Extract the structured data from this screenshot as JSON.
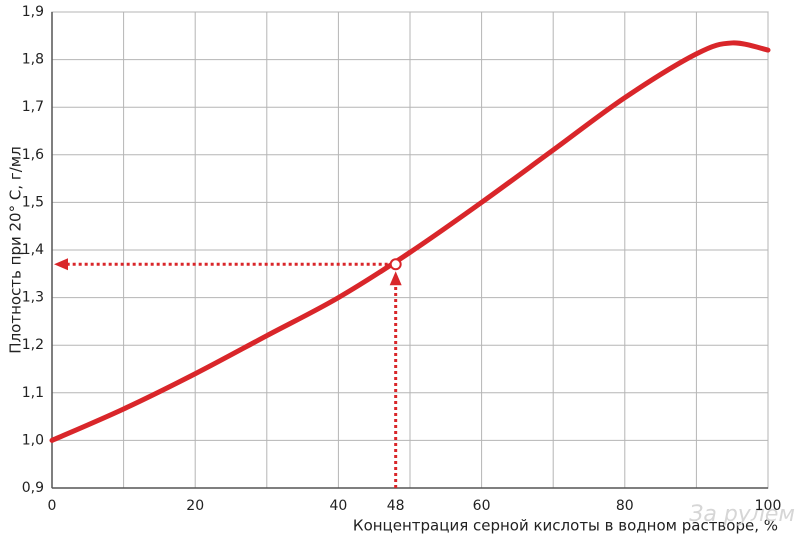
{
  "chart_data": {
    "type": "line",
    "ylabel": "Плотность при 20° C, г/мл",
    "xlabel": "Концентрация серной кислоты в водном растворе, %",
    "watermark": "За рулем",
    "x": [
      0,
      10,
      20,
      30,
      40,
      50,
      60,
      70,
      80,
      90,
      95,
      100
    ],
    "series": [
      {
        "color": "#d9262a",
        "values": [
          1.0,
          1.066,
          1.14,
          1.22,
          1.3,
          1.395,
          1.5,
          1.61,
          1.72,
          1.812,
          1.835,
          1.82
        ]
      }
    ],
    "xlim": [
      0,
      100
    ],
    "xticks": [
      0,
      20,
      40,
      60,
      80,
      100
    ],
    "xminor": [
      10,
      30,
      50,
      70,
      90
    ],
    "ylim": [
      0.9,
      1.9
    ],
    "yticks": [
      {
        "value": 0.9,
        "label": "0,9"
      },
      {
        "value": 1.0,
        "label": "1,0"
      },
      {
        "value": 1.1,
        "label": "1,1"
      },
      {
        "value": 1.2,
        "label": "1,2"
      },
      {
        "value": 1.3,
        "label": "1,3"
      },
      {
        "value": 1.4,
        "label": "1,4"
      },
      {
        "value": 1.5,
        "label": "1,5"
      },
      {
        "value": 1.6,
        "label": "1,6"
      },
      {
        "value": 1.7,
        "label": "1,7"
      },
      {
        "value": 1.8,
        "label": "1,8"
      },
      {
        "value": 1.9,
        "label": "1,9"
      }
    ],
    "grid": true,
    "marker": {
      "x": 48,
      "y": 1.37
    }
  }
}
